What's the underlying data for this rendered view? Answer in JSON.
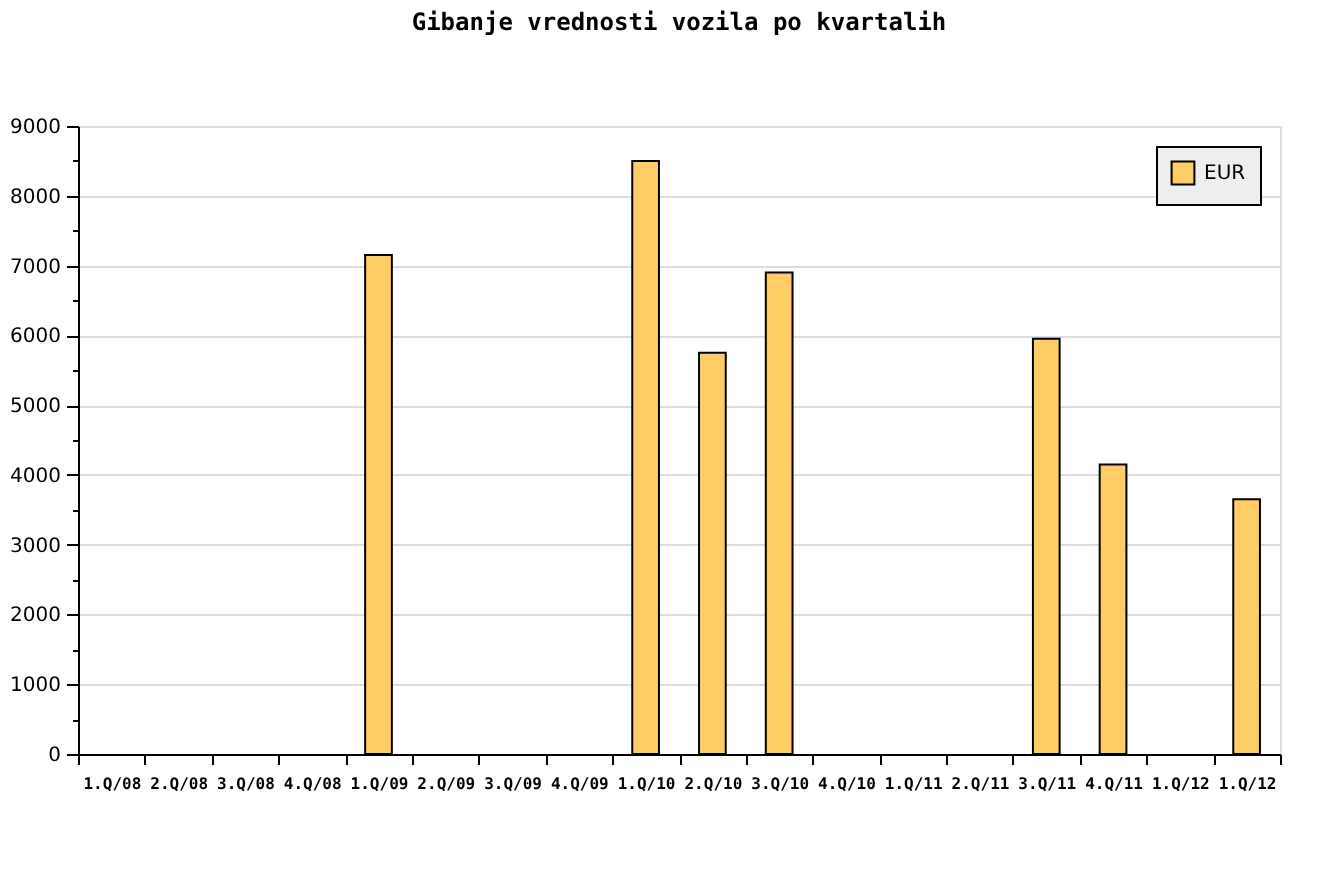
{
  "chart_data": {
    "type": "bar",
    "title": "Gibanje vrednosti vozila po kvartalih",
    "categories": [
      "1.Q/08",
      "2.Q/08",
      "3.Q/08",
      "4.Q/08",
      "1.Q/09",
      "2.Q/09",
      "3.Q/09",
      "4.Q/09",
      "1.Q/10",
      "2.Q/10",
      "3.Q/10",
      "4.Q/10",
      "1.Q/11",
      "2.Q/11",
      "3.Q/11",
      "4.Q/11",
      "1.Q/12",
      "1.Q/12"
    ],
    "series": [
      {
        "name": "EUR",
        "color": "#ffcc66",
        "values": [
          null,
          null,
          null,
          null,
          7150,
          null,
          null,
          null,
          8500,
          5750,
          6900,
          null,
          null,
          null,
          5950,
          4150,
          null,
          3650
        ]
      }
    ],
    "ylim": [
      0,
      9000
    ],
    "yticks": [
      0,
      {
        "value": 500,
        "label": null
      },
      1000,
      {
        "value": 1500,
        "label": null
      },
      2000,
      {
        "value": 2500,
        "label": null
      },
      3000,
      {
        "value": 3500,
        "label": null
      },
      4000,
      {
        "value": 4500,
        "label": null
      },
      5000,
      {
        "value": 5500,
        "label": null
      },
      6000,
      {
        "value": 6500,
        "label": null
      },
      7000,
      {
        "value": 7500,
        "label": null
      },
      8000,
      {
        "value": 8500,
        "label": null
      },
      9000
    ],
    "grid": "y",
    "legend": "top right"
  }
}
